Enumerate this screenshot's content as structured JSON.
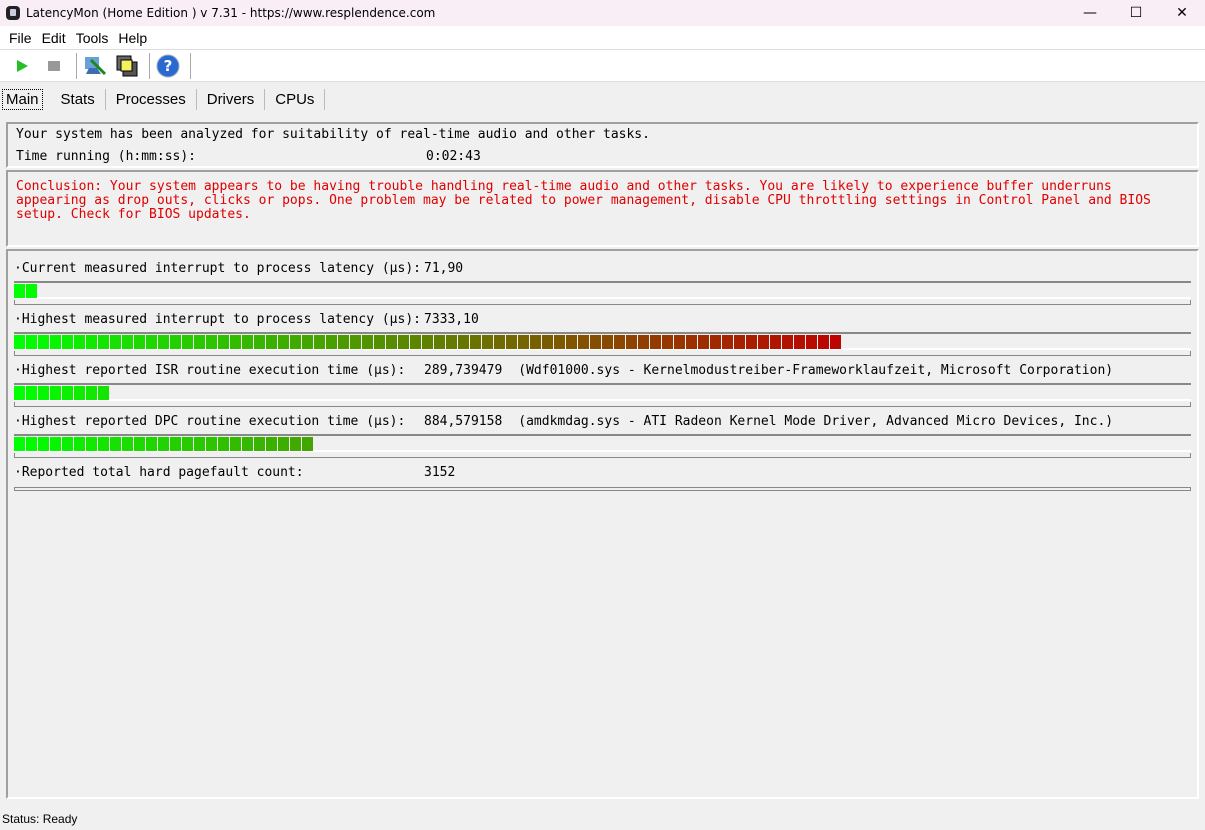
{
  "window": {
    "title": "LatencyMon  (Home Edition )  v 7.31 - https://www.resplendence.com",
    "minimize": "—",
    "maximize": "☐",
    "close": "✕"
  },
  "menu": [
    "File",
    "Edit",
    "Tools",
    "Help"
  ],
  "toolbar": {
    "icons": [
      "play-icon",
      "stop-icon",
      "monitor-icon",
      "windows-icon",
      "help-icon"
    ]
  },
  "tabs": [
    "Main",
    "Stats",
    "Processes",
    "Drivers",
    "CPUs"
  ],
  "summary": {
    "line1": "Your system has been analyzed for suitability of real-time audio and other tasks.",
    "time_label": "Time running (h:mm:ss):",
    "time_value": "0:02:43"
  },
  "conclusion": "Conclusion: Your system appears to be having trouble handling real-time audio and other tasks. You are likely to experience buffer underruns appearing as drop outs, clicks or pops. One problem may be related to power management, disable CPU throttling settings in Control Panel and BIOS setup. Check for BIOS updates.",
  "colors": {
    "conclusion": "#e00000",
    "bar_low": "#00ff00",
    "bar_high": "#c00000"
  },
  "metrics": [
    {
      "label": "·Current measured interrupt to process latency (µs):",
      "value": "71,90",
      "detail": "",
      "fill_percent": 2
    },
    {
      "label": "·Highest measured interrupt to process latency (µs):",
      "value": "7333,10",
      "detail": "",
      "fill_percent": 70
    },
    {
      "label": "·Highest reported ISR routine execution time (µs):",
      "value": "289,739479",
      "detail": "(Wdf01000.sys - Kernelmodustreiber-Frameworklaufzeit, Microsoft Corporation)",
      "fill_percent": 8
    },
    {
      "label": "·Highest reported DPC routine execution time (µs):",
      "value": "884,579158",
      "detail": "(amdkmdag.sys - ATI Radeon Kernel Mode Driver, Advanced Micro Devices, Inc.)",
      "fill_percent": 25
    }
  ],
  "pagefault": {
    "label": "·Reported total hard pagefault count:",
    "value": "3152"
  },
  "status": "Status: Ready"
}
